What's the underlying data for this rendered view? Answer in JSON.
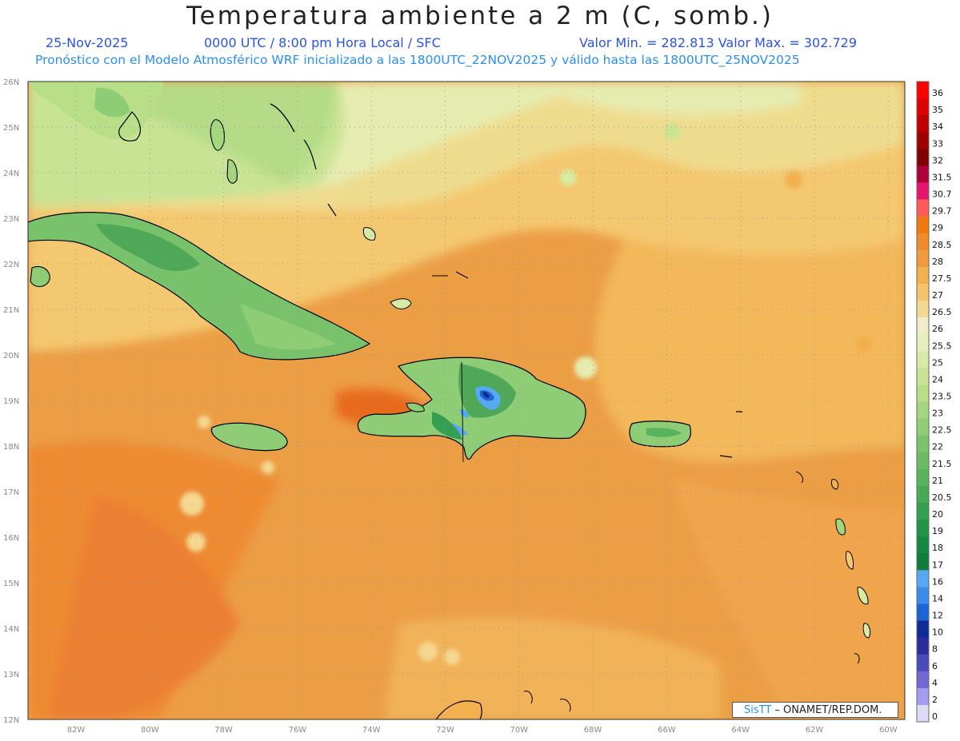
{
  "header": {
    "title": "Temperatura ambiente a 2 m (C, somb.)",
    "date": "25-Nov-2025",
    "time_info": "0000 UTC / 8:00 pm Hora Local / SFC",
    "value_range": "Valor Min. = 282.813  Valor Max. = 302.729",
    "model_info": "Pronóstico con el Modelo Atmosférico WRF inicializado a las 1800UTC_22NOV2025 y válido hasta las  1800UTC_25NOV2025"
  },
  "axes": {
    "lat_labels": [
      "26N",
      "25N",
      "24N",
      "23N",
      "22N",
      "21N",
      "20N",
      "19N",
      "18N",
      "17N",
      "16N",
      "15N",
      "14N",
      "13N",
      "12N"
    ],
    "lon_labels": [
      "82W",
      "80W",
      "78W",
      "76W",
      "74W",
      "72W",
      "70W",
      "68W",
      "66W",
      "64W",
      "62W",
      "60W"
    ]
  },
  "colorbar": {
    "labels": [
      "36",
      "35",
      "34",
      "33",
      "32",
      "31.5",
      "30.7",
      "29.7",
      "29",
      "28.5",
      "28",
      "27.5",
      "27",
      "26.5",
      "26",
      "25.5",
      "25",
      "24",
      "23.5",
      "23",
      "22.5",
      "22",
      "21.5",
      "21",
      "20.5",
      "20",
      "19",
      "18",
      "17",
      "16",
      "14",
      "12",
      "10",
      "8",
      "6",
      "4",
      "2",
      "0"
    ],
    "colors": [
      "#ff0000",
      "#e00000",
      "#c00000",
      "#a00000",
      "#800000",
      "#b0003a",
      "#e61670",
      "#ff5a5a",
      "#f07a10",
      "#f08a2a",
      "#f29a40",
      "#f2b04e",
      "#f4c36a",
      "#f4d892",
      "#f0eccc",
      "#e6f0bc",
      "#d8eba4",
      "#c8e494",
      "#b8df88",
      "#a4d67e",
      "#90cd74",
      "#7cc46c",
      "#6cbb62",
      "#58b45c",
      "#48aa56",
      "#349f50",
      "#229448",
      "#138a40",
      "#0e7e38",
      "#56a8f2",
      "#3b8cea",
      "#1c64d6",
      "#102a98",
      "#2c2c9c",
      "#4a4abc",
      "#7068d4",
      "#a49cf0",
      "#dcdcf6"
    ]
  },
  "credit": {
    "brand": "SisTT",
    "text": " – ONAMET/REP.DOM."
  }
}
